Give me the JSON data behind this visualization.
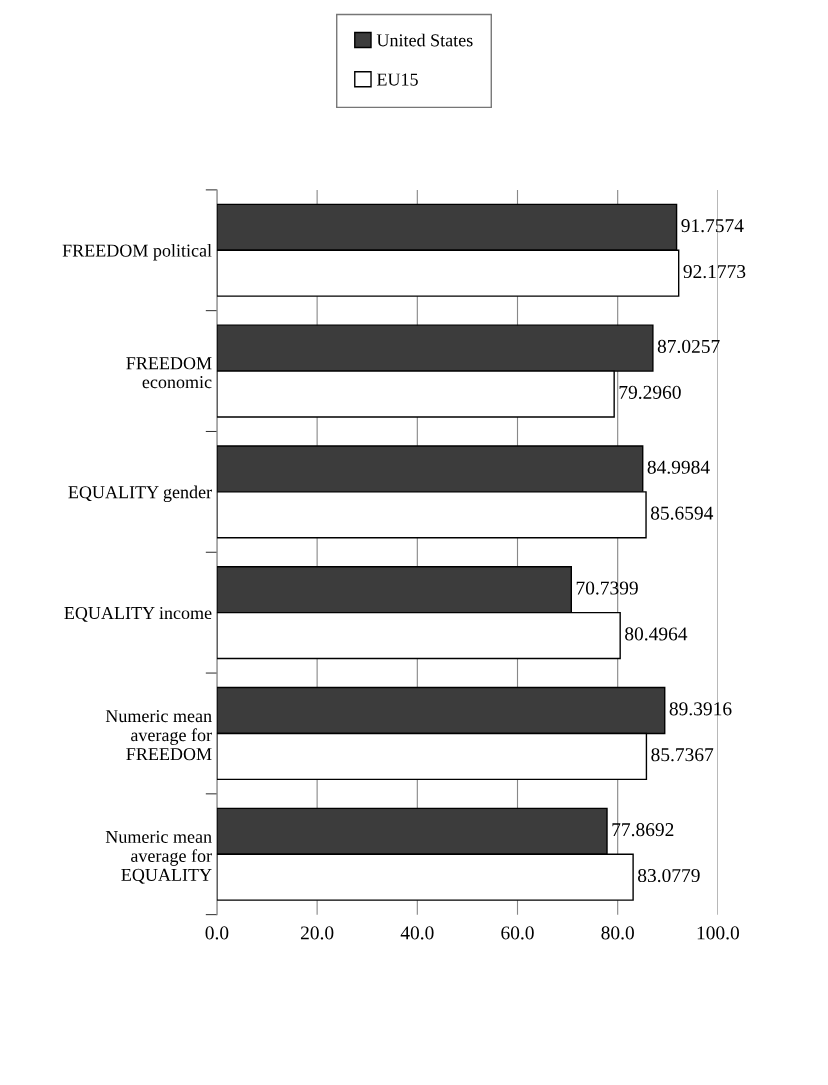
{
  "chart_data": {
    "type": "bar",
    "orientation": "horizontal",
    "categories": [
      "FREEDOM political",
      "FREEDOM\neconomic",
      "EQUALITY gender",
      "EQUALITY income",
      "Numeric mean\naverage for\nFREEDOM",
      "Numeric mean\naverage for\nEQUALITY"
    ],
    "series": [
      {
        "name": "United States",
        "color": "#3c3c3c",
        "values": [
          91.7574,
          87.0257,
          84.9984,
          70.7399,
          89.3916,
          77.8692
        ],
        "value_labels": [
          "91.7574",
          "87.0257",
          "84.9984",
          "70.7399",
          "89.3916",
          "77.8692"
        ]
      },
      {
        "name": "EU15",
        "color": "#ffffff",
        "values": [
          92.1773,
          79.296,
          85.6594,
          80.4964,
          85.7367,
          83.0779
        ],
        "value_labels": [
          "92.1773",
          "79.2960",
          "85.6594",
          "80.4964",
          "85.7367",
          "83.0779"
        ]
      }
    ],
    "xlim": [
      0,
      100
    ],
    "xticks": [
      {
        "value": 0,
        "label": "0.0"
      },
      {
        "value": 20,
        "label": "20.0"
      },
      {
        "value": 40,
        "label": "40.0"
      },
      {
        "value": 60,
        "label": "60.0"
      },
      {
        "value": 80,
        "label": "80.0"
      },
      {
        "value": 100,
        "label": "100.0"
      }
    ],
    "grid": "x",
    "legend": "top"
  }
}
